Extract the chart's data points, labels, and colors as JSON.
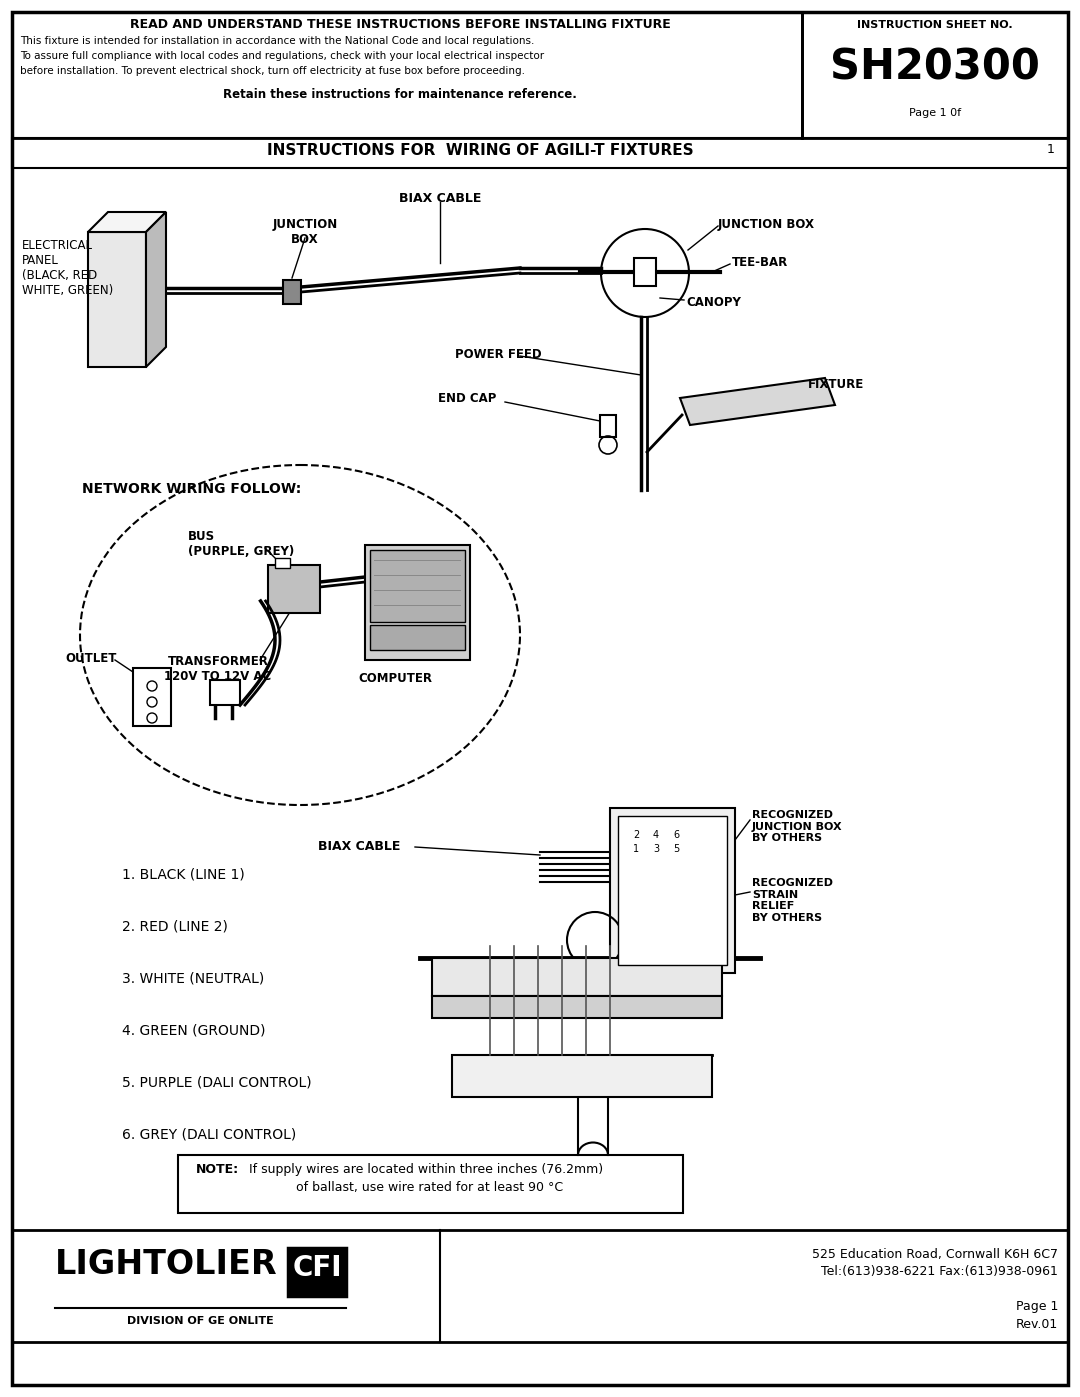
{
  "page_bg": "#ffffff",
  "title_header": "READ AND UNDERSTAND THESE INSTRUCTIONS BEFORE INSTALLING FIXTURE",
  "instruction_sheet_label": "INSTRUCTION SHEET NO.",
  "model_number": "SH20300",
  "page_label": "Page 1 0f",
  "page_num": "1",
  "body_text_line1": "This fixture is intended for installation in accordance with the National Code and local regulations.",
  "body_text_line2": "To assure full compliance with local codes and regulations, check with your local electrical inspector",
  "body_text_line3": "before installation. To prevent electrical shock, turn off electricity at fuse box before proceeding.",
  "retain_text": "Retain these instructions for maintenance reference.",
  "section_title": "INSTRUCTIONS FOR  WIRING OF AGILI-T FIXTURES",
  "label_biax_cable_top": "BIAX CABLE",
  "label_junction_box_left": "JUNCTION\nBOX",
  "label_junction_box_right": "JUNCTION BOX",
  "label_tee_bar": "TEE-BAR",
  "label_canopy": "CANOPY",
  "label_electrical_panel": "ELECTRICAL\nPANEL\n(BLACK, RED\nWHITE, GREEN)",
  "label_power_feed": "POWER FEED",
  "label_end_cap": "END CAP",
  "label_fixture": "FIXTURE",
  "label_network": "NETWORK WIRING FOLLOW:",
  "label_bus": "BUS\n(PURPLE, GREY)",
  "label_outlet": "OUTLET",
  "label_computer": "COMPUTER",
  "label_transformer": "TRANSFORMER\n120V TO 12V AC",
  "label_biax_cable2": "BIAX CABLE",
  "label_recognized_jb": "RECOGNIZED\nJUNCTION BOX\nBY OTHERS",
  "label_recognized_sr": "RECOGNIZED\nSTRAIN\nRELIEF\nBY OTHERS",
  "wire_list": [
    "1. BLACK (LINE 1)",
    "2. RED (LINE 2)",
    "3. WHITE (NEUTRAL)",
    "4. GREEN (GROUND)",
    "5. PURPLE (DALI CONTROL)",
    "6. GREY (DALI CONTROL)"
  ],
  "note_bold": "NOTE:",
  "note_line1": " If supply wires are located within three inches (76.2mm)",
  "note_line2": "of ballast, use wire rated for at least 90 °C",
  "footer_company": "LIGHTOLIER",
  "footer_cfi": "CFI",
  "footer_division": "DIVISION OF GE ONLITE",
  "footer_address": "525 Education Road, Cornwall K6H 6C7",
  "footer_tel": "Tel:(613)938-6221 Fax:(613)938-0961",
  "footer_page": "Page 1",
  "footer_rev": "Rev.01"
}
